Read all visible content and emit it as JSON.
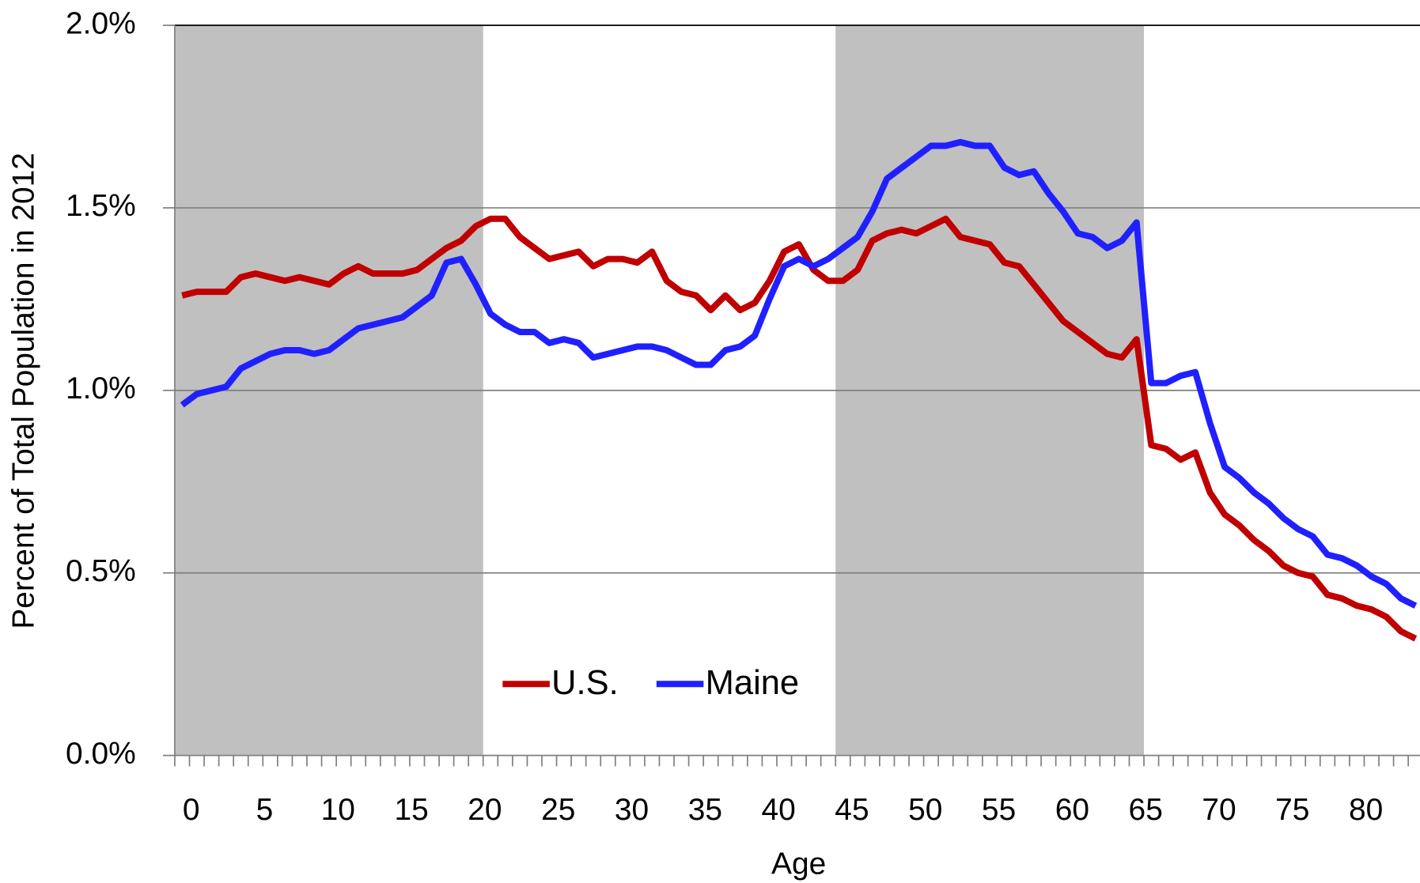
{
  "chart_data": {
    "type": "line",
    "x_label": "Age",
    "y_label": "Percent of Total Population in 2012",
    "x": [
      0,
      1,
      2,
      3,
      4,
      5,
      6,
      7,
      8,
      9,
      10,
      11,
      12,
      13,
      14,
      15,
      16,
      17,
      18,
      19,
      20,
      21,
      22,
      23,
      24,
      25,
      26,
      27,
      28,
      29,
      30,
      31,
      32,
      33,
      34,
      35,
      36,
      37,
      38,
      39,
      40,
      41,
      42,
      43,
      44,
      45,
      46,
      47,
      48,
      49,
      50,
      51,
      52,
      53,
      54,
      55,
      56,
      57,
      58,
      59,
      60,
      61,
      62,
      63,
      64,
      65,
      66,
      67,
      68,
      69,
      70,
      71,
      72,
      73,
      74,
      75,
      76,
      77,
      78,
      79,
      80,
      81,
      82,
      83,
      84
    ],
    "series": [
      {
        "name": "U.S.",
        "color": "#c00000",
        "values": [
          1.26,
          1.27,
          1.27,
          1.27,
          1.31,
          1.32,
          1.31,
          1.3,
          1.31,
          1.3,
          1.29,
          1.32,
          1.34,
          1.32,
          1.32,
          1.32,
          1.33,
          1.36,
          1.39,
          1.41,
          1.45,
          1.47,
          1.47,
          1.42,
          1.39,
          1.36,
          1.37,
          1.38,
          1.34,
          1.36,
          1.36,
          1.35,
          1.38,
          1.3,
          1.27,
          1.26,
          1.22,
          1.26,
          1.22,
          1.24,
          1.3,
          1.38,
          1.4,
          1.33,
          1.3,
          1.3,
          1.33,
          1.41,
          1.43,
          1.44,
          1.43,
          1.45,
          1.47,
          1.42,
          1.41,
          1.4,
          1.35,
          1.34,
          1.29,
          1.24,
          1.19,
          1.16,
          1.13,
          1.1,
          1.09,
          1.14,
          0.85,
          0.84,
          0.81,
          0.83,
          0.72,
          0.66,
          0.63,
          0.59,
          0.56,
          0.52,
          0.5,
          0.49,
          0.44,
          0.43,
          0.41,
          0.4,
          0.38,
          0.34,
          0.32
        ]
      },
      {
        "name": "Maine",
        "color": "#2020ff",
        "values": [
          0.96,
          0.99,
          1.0,
          1.01,
          1.06,
          1.08,
          1.1,
          1.11,
          1.11,
          1.1,
          1.11,
          1.14,
          1.17,
          1.18,
          1.19,
          1.2,
          1.23,
          1.26,
          1.35,
          1.36,
          1.29,
          1.21,
          1.18,
          1.16,
          1.16,
          1.13,
          1.14,
          1.13,
          1.09,
          1.1,
          1.11,
          1.12,
          1.12,
          1.11,
          1.09,
          1.07,
          1.07,
          1.11,
          1.12,
          1.15,
          1.25,
          1.34,
          1.36,
          1.34,
          1.36,
          1.39,
          1.42,
          1.49,
          1.58,
          1.61,
          1.64,
          1.67,
          1.67,
          1.68,
          1.67,
          1.67,
          1.61,
          1.59,
          1.6,
          1.54,
          1.49,
          1.43,
          1.42,
          1.39,
          1.41,
          1.46,
          1.02,
          1.02,
          1.04,
          1.05,
          0.91,
          0.79,
          0.76,
          0.72,
          0.69,
          0.65,
          0.62,
          0.6,
          0.55,
          0.54,
          0.52,
          0.49,
          0.47,
          0.43,
          0.41
        ]
      }
    ],
    "shaded_ranges": [
      [
        -0.5,
        20.5
      ],
      [
        44.5,
        65.5
      ]
    ],
    "shade_color": "#c0c0c0",
    "xlim": [
      -0.5,
      84.3
    ],
    "xticks": [
      0,
      5,
      10,
      15,
      20,
      25,
      30,
      35,
      40,
      45,
      50,
      55,
      60,
      65,
      70,
      75,
      80
    ],
    "ylim": [
      0,
      2
    ],
    "yticks": [
      {
        "value": 0,
        "label": "0.0%"
      },
      {
        "value": 0.5,
        "label": "0.5%"
      },
      {
        "value": 1,
        "label": "1.0%"
      },
      {
        "value": 1.5,
        "label": "1.5%"
      },
      {
        "value": 2,
        "label": "2.0%"
      }
    ],
    "grid": true,
    "legend": "bottom-center"
  }
}
